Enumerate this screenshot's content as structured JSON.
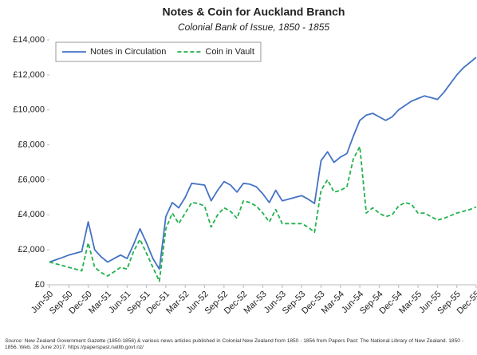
{
  "chart_data": {
    "type": "line",
    "title": "Notes & Coin for Auckland Branch",
    "subtitle": "Colonial Bank of Issue, 1850 - 1855",
    "source_label": "Source:",
    "source": "New Zealand Government Gazette (1850-1856) & various news articles published in Colonial New Zealand from 1850 - 1856 from Papers Past: The National Library of New Zealand. 1850 - 1856. Web. 28 June 2017. https://paperspast.natlib.govt.nz/",
    "categories": [
      "Jun-50",
      null,
      null,
      "Sep-50",
      null,
      null,
      "Dec-50",
      null,
      null,
      "Mar-51",
      null,
      null,
      "Jun-51",
      null,
      null,
      "Sep-51",
      null,
      null,
      "Dec-51",
      null,
      null,
      "Mar-52",
      null,
      null,
      "Jun-52",
      null,
      null,
      "Sep-52",
      null,
      null,
      "Dec-52",
      null,
      null,
      "Mar-53",
      null,
      null,
      "Jun-53",
      null,
      null,
      "Sep-53",
      null,
      null,
      "Dec-53",
      null,
      null,
      "Mar-54",
      null,
      null,
      "Jun-54",
      null,
      null,
      "Sep-54",
      null,
      null,
      "Dec-54",
      null,
      null,
      "Mar-55",
      null,
      null,
      "Jun-55",
      null,
      null,
      "Sep-55",
      null,
      null,
      "Dec-55"
    ],
    "series": [
      {
        "name": "Notes in Circulation",
        "color": "#4472c4",
        "dashed": false,
        "values": [
          1300,
          1430,
          1560,
          1700,
          1800,
          1900,
          3600,
          2000,
          1600,
          1300,
          1500,
          1700,
          1500,
          2300,
          3200,
          2400,
          1500,
          900,
          3900,
          4700,
          4400,
          5000,
          5800,
          5750,
          5700,
          4800,
          5400,
          5900,
          5700,
          5300,
          5800,
          5750,
          5600,
          5200,
          4700,
          5400,
          4800,
          4900,
          5000,
          5100,
          4900,
          4650,
          7100,
          7600,
          7000,
          7300,
          7500,
          8500,
          9400,
          9700,
          9800,
          9600,
          9400,
          9600,
          10000,
          10250,
          10500,
          10650,
          10800,
          10700,
          10600,
          11000,
          11500,
          12000,
          12400,
          12700,
          13000
        ]
      },
      {
        "name": "Coin in Vault",
        "color": "#22b14c",
        "dashed": true,
        "values": [
          1300,
          1200,
          1100,
          1000,
          900,
          800,
          2400,
          1000,
          700,
          500,
          750,
          1000,
          900,
          1900,
          2600,
          1800,
          1000,
          200,
          3200,
          4100,
          3500,
          4100,
          4700,
          4650,
          4500,
          3300,
          4000,
          4400,
          4200,
          3800,
          4800,
          4700,
          4500,
          4100,
          3600,
          4300,
          3500,
          3500,
          3500,
          3500,
          3300,
          3000,
          5400,
          6000,
          5300,
          5400,
          5600,
          7200,
          7900,
          4100,
          4400,
          4100,
          3900,
          4000,
          4500,
          4700,
          4600,
          4100,
          4100,
          3900,
          3700,
          3800,
          3950,
          4100,
          4200,
          4300,
          4450
        ]
      }
    ],
    "ylim": [
      0,
      14000
    ],
    "yticks": [
      {
        "value": 0,
        "label": "£0"
      },
      {
        "value": 2000,
        "label": "£2,000"
      },
      {
        "value": 4000,
        "label": "£4,000"
      },
      {
        "value": 6000,
        "label": "£6,000"
      },
      {
        "value": 8000,
        "label": "£8,000"
      },
      {
        "value": 10000,
        "label": "£10,000"
      },
      {
        "value": 12000,
        "label": "£12,000"
      },
      {
        "value": 14000,
        "label": "£14,000"
      }
    ],
    "grid": false,
    "legend": "upper-left"
  }
}
